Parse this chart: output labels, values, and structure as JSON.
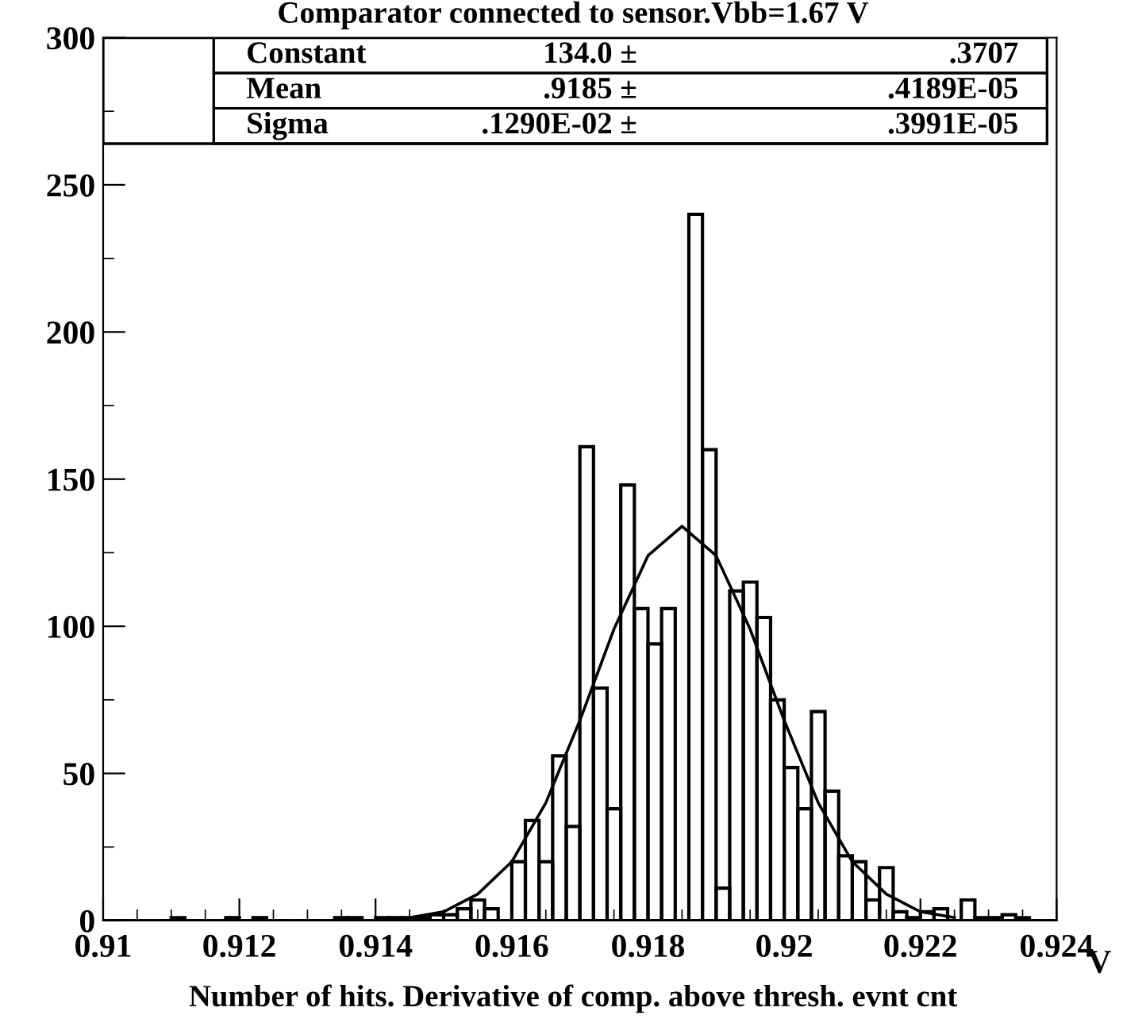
{
  "chart_data": {
    "type": "histogram",
    "title": "Comparator connected to sensor.Vbb=1.67 V",
    "subtitle": "Number of hits. Derivative of comp. above thresh. evnt cnt",
    "xlabel": "V",
    "bins": [
      0.91,
      0.9102,
      0.9104,
      0.9106,
      0.9108,
      0.911,
      0.9112,
      0.9114,
      0.9116,
      0.9118,
      0.912,
      0.9122,
      0.9124,
      0.9126,
      0.9128,
      0.913,
      0.9132,
      0.9134,
      0.9136,
      0.9138,
      0.914,
      0.9142,
      0.9144,
      0.9146,
      0.9148,
      0.915,
      0.9152,
      0.9154,
      0.9156,
      0.9158,
      0.916,
      0.9162,
      0.9164,
      0.9166,
      0.9168,
      0.917,
      0.9172,
      0.9174,
      0.9176,
      0.9178,
      0.918,
      0.9182,
      0.9184,
      0.9186,
      0.9188,
      0.919,
      0.9192,
      0.9194,
      0.9196,
      0.9198,
      0.92,
      0.9202,
      0.9204,
      0.9206,
      0.9208,
      0.921,
      0.9212,
      0.9214,
      0.9216,
      0.9218,
      0.922,
      0.9222,
      0.9224,
      0.9226,
      0.9228,
      0.923,
      0.9232,
      0.9234,
      0.9236,
      0.9238,
      0.924
    ],
    "series": [
      {
        "color": "#000000",
        "values": [
          0,
          0,
          0,
          0,
          0,
          1,
          0,
          0,
          0,
          1,
          0,
          1,
          0,
          0,
          0,
          0,
          0,
          1,
          1,
          0,
          1,
          1,
          1,
          1,
          2,
          2,
          4,
          7,
          4,
          0,
          20,
          34,
          20,
          56,
          32,
          161,
          79,
          38,
          148,
          106,
          94,
          106,
          0,
          240,
          160,
          11,
          112,
          115,
          103,
          75,
          52,
          38,
          71,
          44,
          22,
          20,
          7,
          18,
          3,
          1,
          3,
          4,
          0,
          7,
          1,
          1,
          2,
          1,
          0,
          0
        ]
      },
      {
        "type": "line",
        "color": "#000000",
        "x": [
          0.9145,
          0.915,
          0.9155,
          0.916,
          0.9165,
          0.917,
          0.9175,
          0.918,
          0.9185,
          0.919,
          0.9195,
          0.92,
          0.9205,
          0.921,
          0.9215,
          0.922,
          0.9225
        ],
        "values": [
          1,
          3,
          9,
          20,
          40,
          68,
          99,
          124,
          134,
          124,
          99,
          68,
          40,
          20,
          9,
          3,
          1
        ]
      }
    ],
    "xlim": [
      0.91,
      0.924
    ],
    "ylim": [
      0,
      300
    ],
    "xticks": [
      0.91,
      0.912,
      0.914,
      0.916,
      0.918,
      0.92,
      0.922,
      0.924
    ],
    "yticks": [
      0,
      50,
      100,
      150,
      200,
      250,
      300
    ],
    "grid": false,
    "legend": false,
    "annotations": [
      "Constant",
      "134.0 ±",
      ".3707",
      "Mean",
      ".9185 ±",
      ".4189E-05",
      "Sigma",
      ".1290E-02 ±",
      ".3991E-05"
    ]
  }
}
